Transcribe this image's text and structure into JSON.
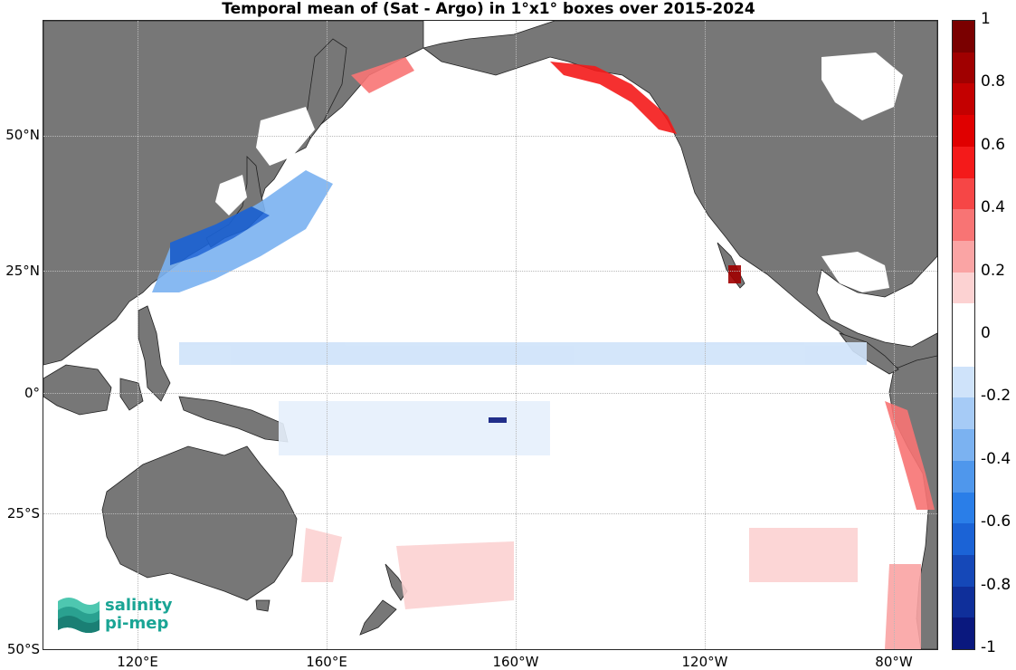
{
  "title": "Temporal mean of (Sat - Argo) in 1°x1° boxes over 2015-2024",
  "y_labels": [
    "50°N",
    "25°N",
    "0°",
    "25°S",
    "50°S"
  ],
  "x_labels": [
    "120°E",
    "160°E",
    "160°W",
    "120°W",
    "80°W"
  ],
  "colorbar": {
    "labels": [
      "1",
      "0.8",
      "0.6",
      "0.4",
      "0.2",
      "0",
      "-0.2",
      "-0.4",
      "-0.6",
      "-0.8",
      "-1"
    ],
    "range": [
      -1,
      1
    ],
    "colors_top_to_bottom": [
      "#7a0000",
      "#a00000",
      "#c40000",
      "#e00000",
      "#f41a1a",
      "#f64646",
      "#f87474",
      "#faa4a4",
      "#fcd2d2",
      "#ffffff",
      "#ffffff",
      "#cfe3fa",
      "#a6cbf6",
      "#7bb2f1",
      "#4f97ec",
      "#2a7ee8",
      "#1b63d6",
      "#1548b8",
      "#0f2f9a",
      "#0a187e"
    ]
  },
  "colors": {
    "land": "#777777",
    "ocean": "#ffffff"
  },
  "logo": {
    "line1": "salinity",
    "line2": "pi-mep"
  }
}
